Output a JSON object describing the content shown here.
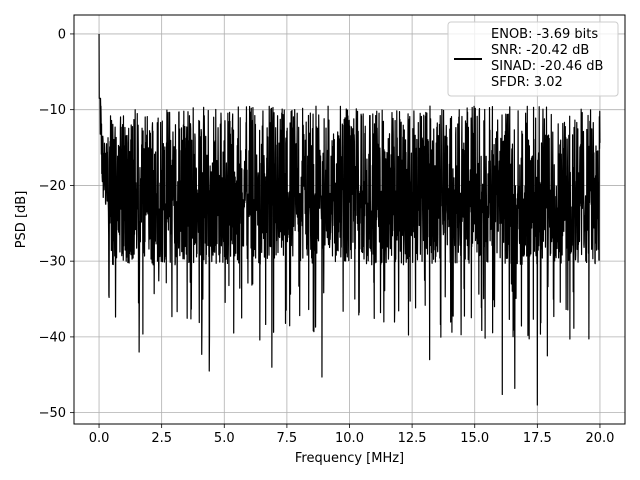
{
  "chart_data": {
    "type": "line",
    "title": "",
    "xlabel": "Frequency [MHz]",
    "ylabel": "PSD [dB]",
    "xlim": [
      -1.0,
      21.0
    ],
    "ylim": [
      -51.5,
      2.5
    ],
    "xticks": [
      0.0,
      2.5,
      5.0,
      7.5,
      10.0,
      12.5,
      15.0,
      17.5,
      20.0
    ],
    "xtick_labels": [
      "0.0",
      "2.5",
      "5.0",
      "7.5",
      "10.0",
      "12.5",
      "15.0",
      "17.5",
      "20.0"
    ],
    "yticks": [
      0,
      -10,
      -20,
      -30,
      -40,
      -50
    ],
    "ytick_labels": [
      "0",
      "−10",
      "−20",
      "−30",
      "−40",
      "−50"
    ],
    "grid": true,
    "legend": {
      "placement": "top-right",
      "entries": [
        "ENOB: -3.69 bits",
        "SNR: -20.42 dB",
        "SINAD: -20.46 dB",
        "SFDR: 3.02"
      ]
    },
    "series": [
      {
        "color": "#000000",
        "x_range": [
          0.0,
          20.0
        ],
        "peak": {
          "x": 0.0,
          "y": 0.0
        },
        "noise_floor_mean": -19.5,
        "typical_upper": -10.0,
        "typical_lower": -30.0,
        "deep_dips": [
          {
            "x": 1.6,
            "y": -42.0
          },
          {
            "x": 4.1,
            "y": -42.3
          },
          {
            "x": 4.4,
            "y": -44.5
          },
          {
            "x": 6.9,
            "y": -44.0
          },
          {
            "x": 8.9,
            "y": -45.3
          },
          {
            "x": 13.2,
            "y": -43.0
          },
          {
            "x": 16.1,
            "y": -47.6
          },
          {
            "x": 16.6,
            "y": -46.8
          },
          {
            "x": 17.5,
            "y": -49.0
          },
          {
            "x": 17.9,
            "y": -42.5
          }
        ]
      }
    ]
  }
}
